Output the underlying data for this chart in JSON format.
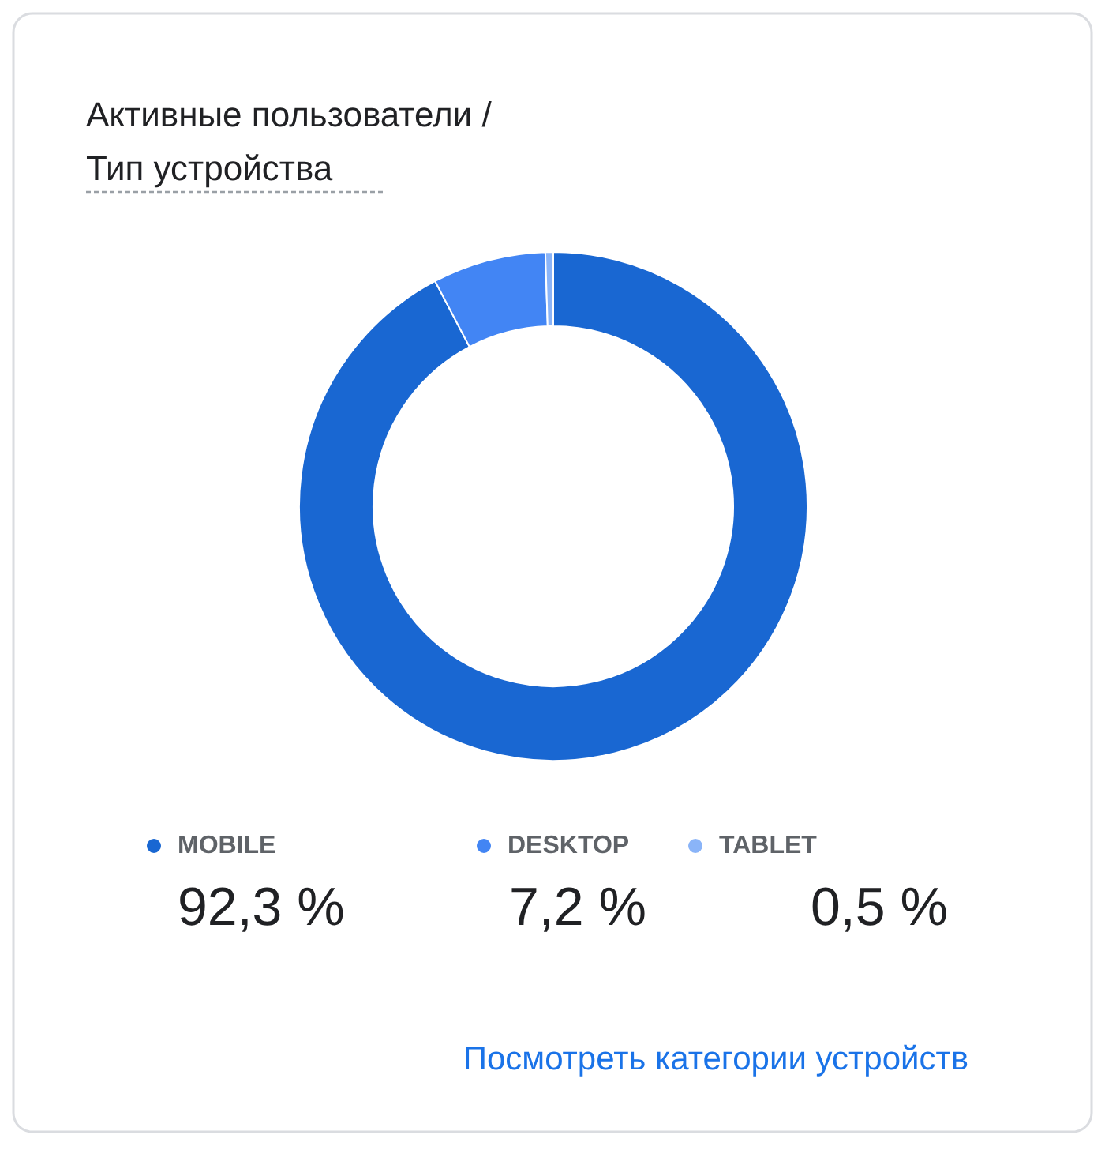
{
  "chart_data": {
    "type": "donut",
    "title": "Активные пользователи /",
    "subtitle": "Тип устройства",
    "categories": [
      "MOBILE",
      "DESKTOP",
      "TABLET"
    ],
    "values": [
      92.3,
      7.2,
      0.5
    ],
    "colors": [
      "#1967d2",
      "#4285f4",
      "#8ab4f8"
    ],
    "value_labels": [
      "92,3 %",
      "7,2 %",
      "0,5 %"
    ],
    "legend": "bottom",
    "annotations": [
      "Посмотреть категории устройств"
    ]
  }
}
